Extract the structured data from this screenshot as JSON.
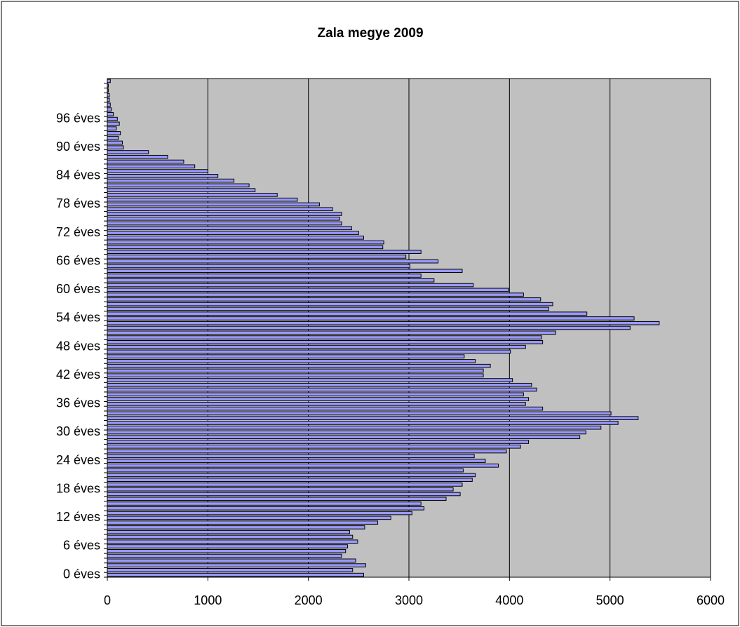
{
  "chart_data": {
    "type": "barh",
    "title": "Zala megye 2009",
    "categories": [
      "0 éves",
      null,
      null,
      null,
      null,
      null,
      "6 éves",
      null,
      null,
      null,
      null,
      null,
      "12 éves",
      null,
      null,
      null,
      null,
      null,
      "18 éves",
      null,
      null,
      null,
      null,
      null,
      "24 éves",
      null,
      null,
      null,
      null,
      null,
      "30 éves",
      null,
      null,
      null,
      null,
      null,
      "36 éves",
      null,
      null,
      null,
      null,
      null,
      "42 éves",
      null,
      null,
      null,
      null,
      null,
      "48 éves",
      null,
      null,
      null,
      null,
      null,
      "54 éves",
      null,
      null,
      null,
      null,
      null,
      "60 éves",
      null,
      null,
      null,
      null,
      null,
      "66 éves",
      null,
      null,
      null,
      null,
      null,
      "72 éves",
      null,
      null,
      null,
      null,
      null,
      "78 éves",
      null,
      null,
      null,
      null,
      null,
      "84 éves",
      null,
      null,
      null,
      null,
      null,
      "90 éves",
      null,
      null,
      null,
      null,
      null,
      "96 éves",
      null,
      null,
      null,
      null,
      null,
      null,
      null,
      null
    ],
    "values": [
      2550,
      2440,
      2570,
      2470,
      2330,
      2370,
      2390,
      2490,
      2440,
      2410,
      2560,
      2690,
      2820,
      3030,
      3150,
      3120,
      3370,
      3510,
      3440,
      3530,
      3630,
      3660,
      3540,
      3890,
      3760,
      3650,
      3970,
      4110,
      4190,
      4700,
      4760,
      4910,
      5080,
      5280,
      5010,
      4330,
      4160,
      4190,
      4140,
      4270,
      4220,
      4030,
      3740,
      3740,
      3810,
      3660,
      3550,
      4010,
      4160,
      4330,
      4320,
      4460,
      5200,
      5490,
      5240,
      4770,
      4390,
      4430,
      4310,
      4140,
      3990,
      3640,
      3250,
      3120,
      3530,
      3010,
      3290,
      2970,
      3120,
      2740,
      2750,
      2550,
      2500,
      2430,
      2330,
      2310,
      2330,
      2240,
      2110,
      1890,
      1690,
      1470,
      1410,
      1260,
      1100,
      1000,
      870,
      760,
      600,
      410,
      160,
      150,
      110,
      130,
      90,
      120,
      100,
      60,
      40,
      30,
      20,
      20,
      10,
      10,
      30
    ],
    "color": "#9999ff",
    "xlim": [
      0,
      6000
    ],
    "xticks": [
      0,
      1000,
      2000,
      3000,
      4000,
      5000,
      6000
    ],
    "grid": true
  }
}
